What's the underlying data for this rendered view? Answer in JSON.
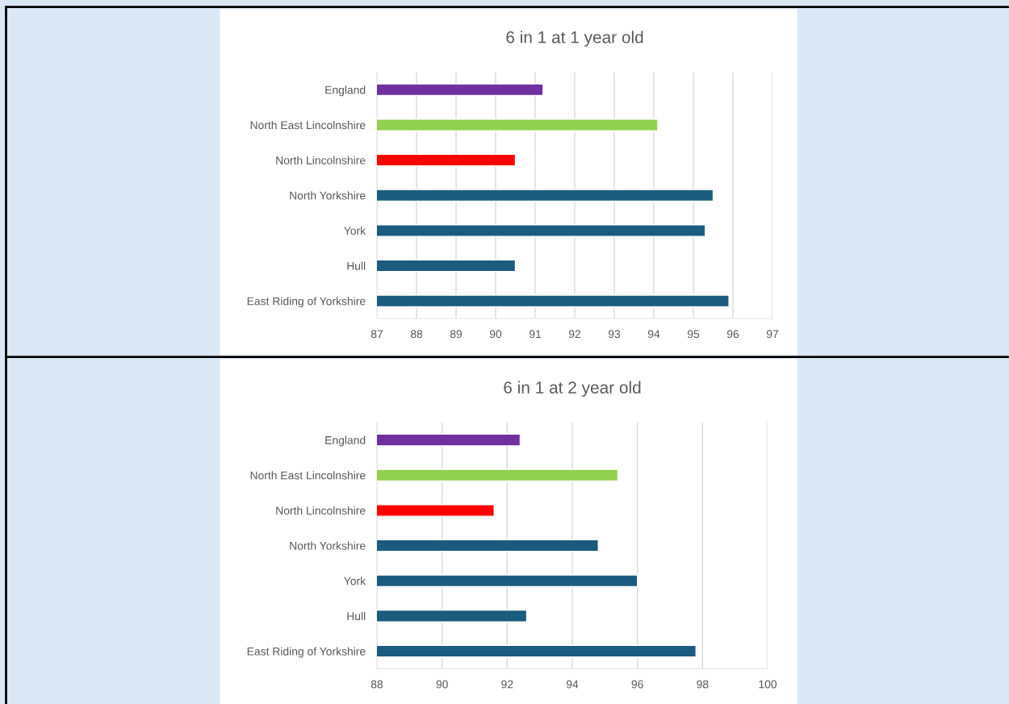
{
  "chart_data": [
    {
      "type": "bar",
      "orientation": "horizontal",
      "title": "6 in 1 at 1 year old",
      "categories": [
        "England",
        "North East Lincolnshire",
        "North Lincolnshire",
        "North Yorkshire",
        "York",
        "Hull",
        "East Riding of Yorkshire"
      ],
      "values": [
        91.2,
        94.1,
        90.5,
        95.5,
        95.3,
        90.5,
        95.9
      ],
      "colors": [
        "#7030a0",
        "#92d050",
        "#ff0000",
        "#1b5c7e",
        "#1b5c7e",
        "#1b5c7e",
        "#1b5c7e"
      ],
      "xlim": [
        87,
        97
      ],
      "xticks": [
        87,
        88,
        89,
        90,
        91,
        92,
        93,
        94,
        95,
        96,
        97
      ],
      "grid": "x"
    },
    {
      "type": "bar",
      "orientation": "horizontal",
      "title": "6 in 1 at 2 year old",
      "categories": [
        "England",
        "North East Lincolnshire",
        "North Lincolnshire",
        "North Yorkshire",
        "York",
        "Hull",
        "East Riding of Yorkshire"
      ],
      "values": [
        92.4,
        95.4,
        91.6,
        94.8,
        96.0,
        92.6,
        97.8
      ],
      "colors": [
        "#7030a0",
        "#92d050",
        "#ff0000",
        "#1b5c7e",
        "#1b5c7e",
        "#1b5c7e",
        "#1b5c7e"
      ],
      "xlim": [
        88,
        100
      ],
      "xticks": [
        88,
        90,
        92,
        94,
        96,
        98,
        100
      ],
      "grid": "x"
    }
  ]
}
